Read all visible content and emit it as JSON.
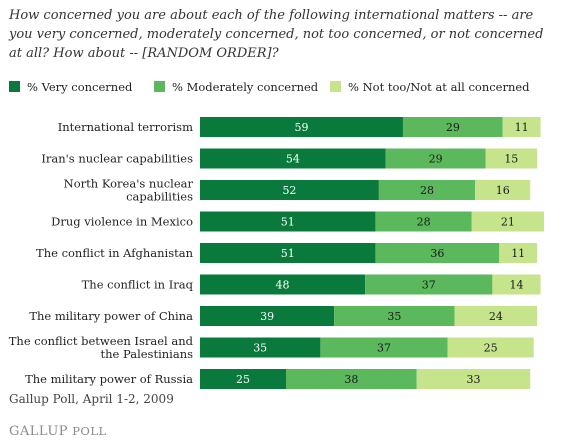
{
  "question": "How concerned you are about each of the following international matters -- are you very concerned, moderately concerned, not too concerned, or not concerned at all? How about -- [RANDOM ORDER]?",
  "source": "Gallup Poll, April 1-2, 2009",
  "brand": {
    "first": "GALLUP",
    "second": "POLL"
  },
  "colors": {
    "very": "#0a7a3c",
    "moderate": "#5cb85c",
    "not_too": "#c6e48b"
  },
  "chart_data": {
    "type": "bar",
    "orientation": "horizontal",
    "stacked": true,
    "xlim": [
      0,
      100
    ],
    "grid": false,
    "legend_position": "top",
    "categories": [
      [
        "International terrorism"
      ],
      [
        "Iran's nuclear capabilities"
      ],
      [
        "North Korea's nuclear",
        "capabilities"
      ],
      [
        "Drug violence in Mexico"
      ],
      [
        "The conflict in Afghanistan"
      ],
      [
        "The conflict in Iraq"
      ],
      [
        "The military power of China"
      ],
      [
        "The conflict between Israel and",
        "the Palestinians"
      ],
      [
        "The military power of Russia"
      ]
    ],
    "series": [
      {
        "name": "% Very concerned",
        "color": "#0a7a3c",
        "label_color": "#ffffff",
        "values": [
          59,
          54,
          52,
          51,
          51,
          48,
          39,
          35,
          25
        ]
      },
      {
        "name": "% Moderately concerned",
        "color": "#5cb85c",
        "label_color": "#1a1a1a",
        "values": [
          29,
          29,
          28,
          28,
          36,
          37,
          35,
          37,
          38
        ]
      },
      {
        "name": "% Not too/Not at all concerned",
        "color": "#c6e48b",
        "label_color": "#1a1a1a",
        "values": [
          11,
          15,
          16,
          21,
          11,
          14,
          24,
          25,
          33
        ]
      }
    ]
  }
}
